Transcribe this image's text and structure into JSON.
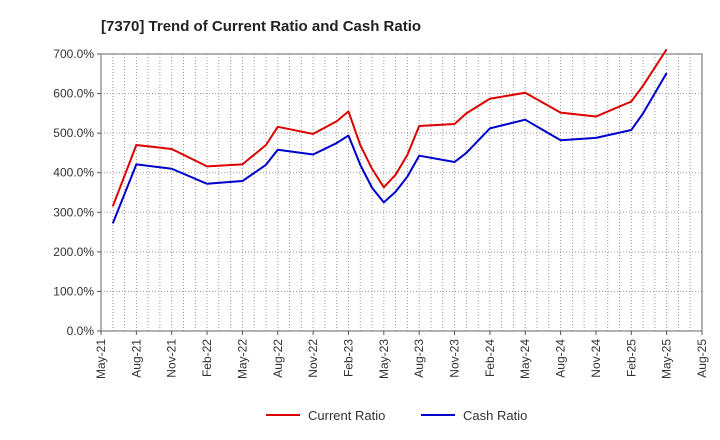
{
  "chart_data": {
    "type": "line",
    "title": "[7370]  Trend of Current Ratio and Cash Ratio",
    "xlabel": "",
    "ylabel": "",
    "ylim": [
      0,
      700
    ],
    "y_ticks": [
      0,
      100,
      200,
      300,
      400,
      500,
      600,
      700
    ],
    "y_tick_labels": [
      "0.0%",
      "100.0%",
      "200.0%",
      "300.0%",
      "400.0%",
      "500.0%",
      "600.0%",
      "700.0%"
    ],
    "x_tick_labels": [
      "May-21",
      "Aug-21",
      "Nov-21",
      "Feb-22",
      "May-22",
      "Aug-22",
      "Nov-22",
      "Feb-23",
      "May-23",
      "Aug-23",
      "Nov-23",
      "Feb-24",
      "May-24",
      "Aug-24",
      "Nov-24",
      "Feb-25",
      "May-25",
      "Aug-25"
    ],
    "x_range": [
      "2021-05",
      "2025-08"
    ],
    "grid": true,
    "legend_position": "bottom",
    "series": [
      {
        "name": "Current Ratio",
        "color": "#dd0000",
        "points": [
          [
            "2021-06",
            315
          ],
          [
            "2021-08",
            470
          ],
          [
            "2021-11",
            460
          ],
          [
            "2022-02",
            416
          ],
          [
            "2022-05",
            421
          ],
          [
            "2022-07",
            470
          ],
          [
            "2022-08",
            516
          ],
          [
            "2022-11",
            498
          ],
          [
            "2023-01",
            530
          ],
          [
            "2023-02",
            555
          ],
          [
            "2023-03",
            470
          ],
          [
            "2023-04",
            410
          ],
          [
            "2023-05",
            363
          ],
          [
            "2023-06",
            395
          ],
          [
            "2023-07",
            445
          ],
          [
            "2023-08",
            518
          ],
          [
            "2023-11",
            523
          ],
          [
            "2023-12",
            550
          ],
          [
            "2024-02",
            587
          ],
          [
            "2024-05",
            602
          ],
          [
            "2024-08",
            552
          ],
          [
            "2024-11",
            542
          ],
          [
            "2025-02",
            580
          ],
          [
            "2025-03",
            620
          ],
          [
            "2025-05",
            712
          ]
        ]
      },
      {
        "name": "Cash Ratio",
        "color": "#0000cc",
        "points": [
          [
            "2021-06",
            272
          ],
          [
            "2021-08",
            421
          ],
          [
            "2021-11",
            410
          ],
          [
            "2022-02",
            372
          ],
          [
            "2022-05",
            379
          ],
          [
            "2022-07",
            420
          ],
          [
            "2022-08",
            458
          ],
          [
            "2022-11",
            446
          ],
          [
            "2023-01",
            475
          ],
          [
            "2023-02",
            494
          ],
          [
            "2023-03",
            420
          ],
          [
            "2023-04",
            362
          ],
          [
            "2023-05",
            325
          ],
          [
            "2023-06",
            352
          ],
          [
            "2023-07",
            390
          ],
          [
            "2023-08",
            443
          ],
          [
            "2023-11",
            427
          ],
          [
            "2023-12",
            450
          ],
          [
            "2024-02",
            512
          ],
          [
            "2024-05",
            534
          ],
          [
            "2024-08",
            482
          ],
          [
            "2024-11",
            488
          ],
          [
            "2025-02",
            508
          ],
          [
            "2025-03",
            550
          ],
          [
            "2025-05",
            652
          ]
        ]
      }
    ]
  }
}
